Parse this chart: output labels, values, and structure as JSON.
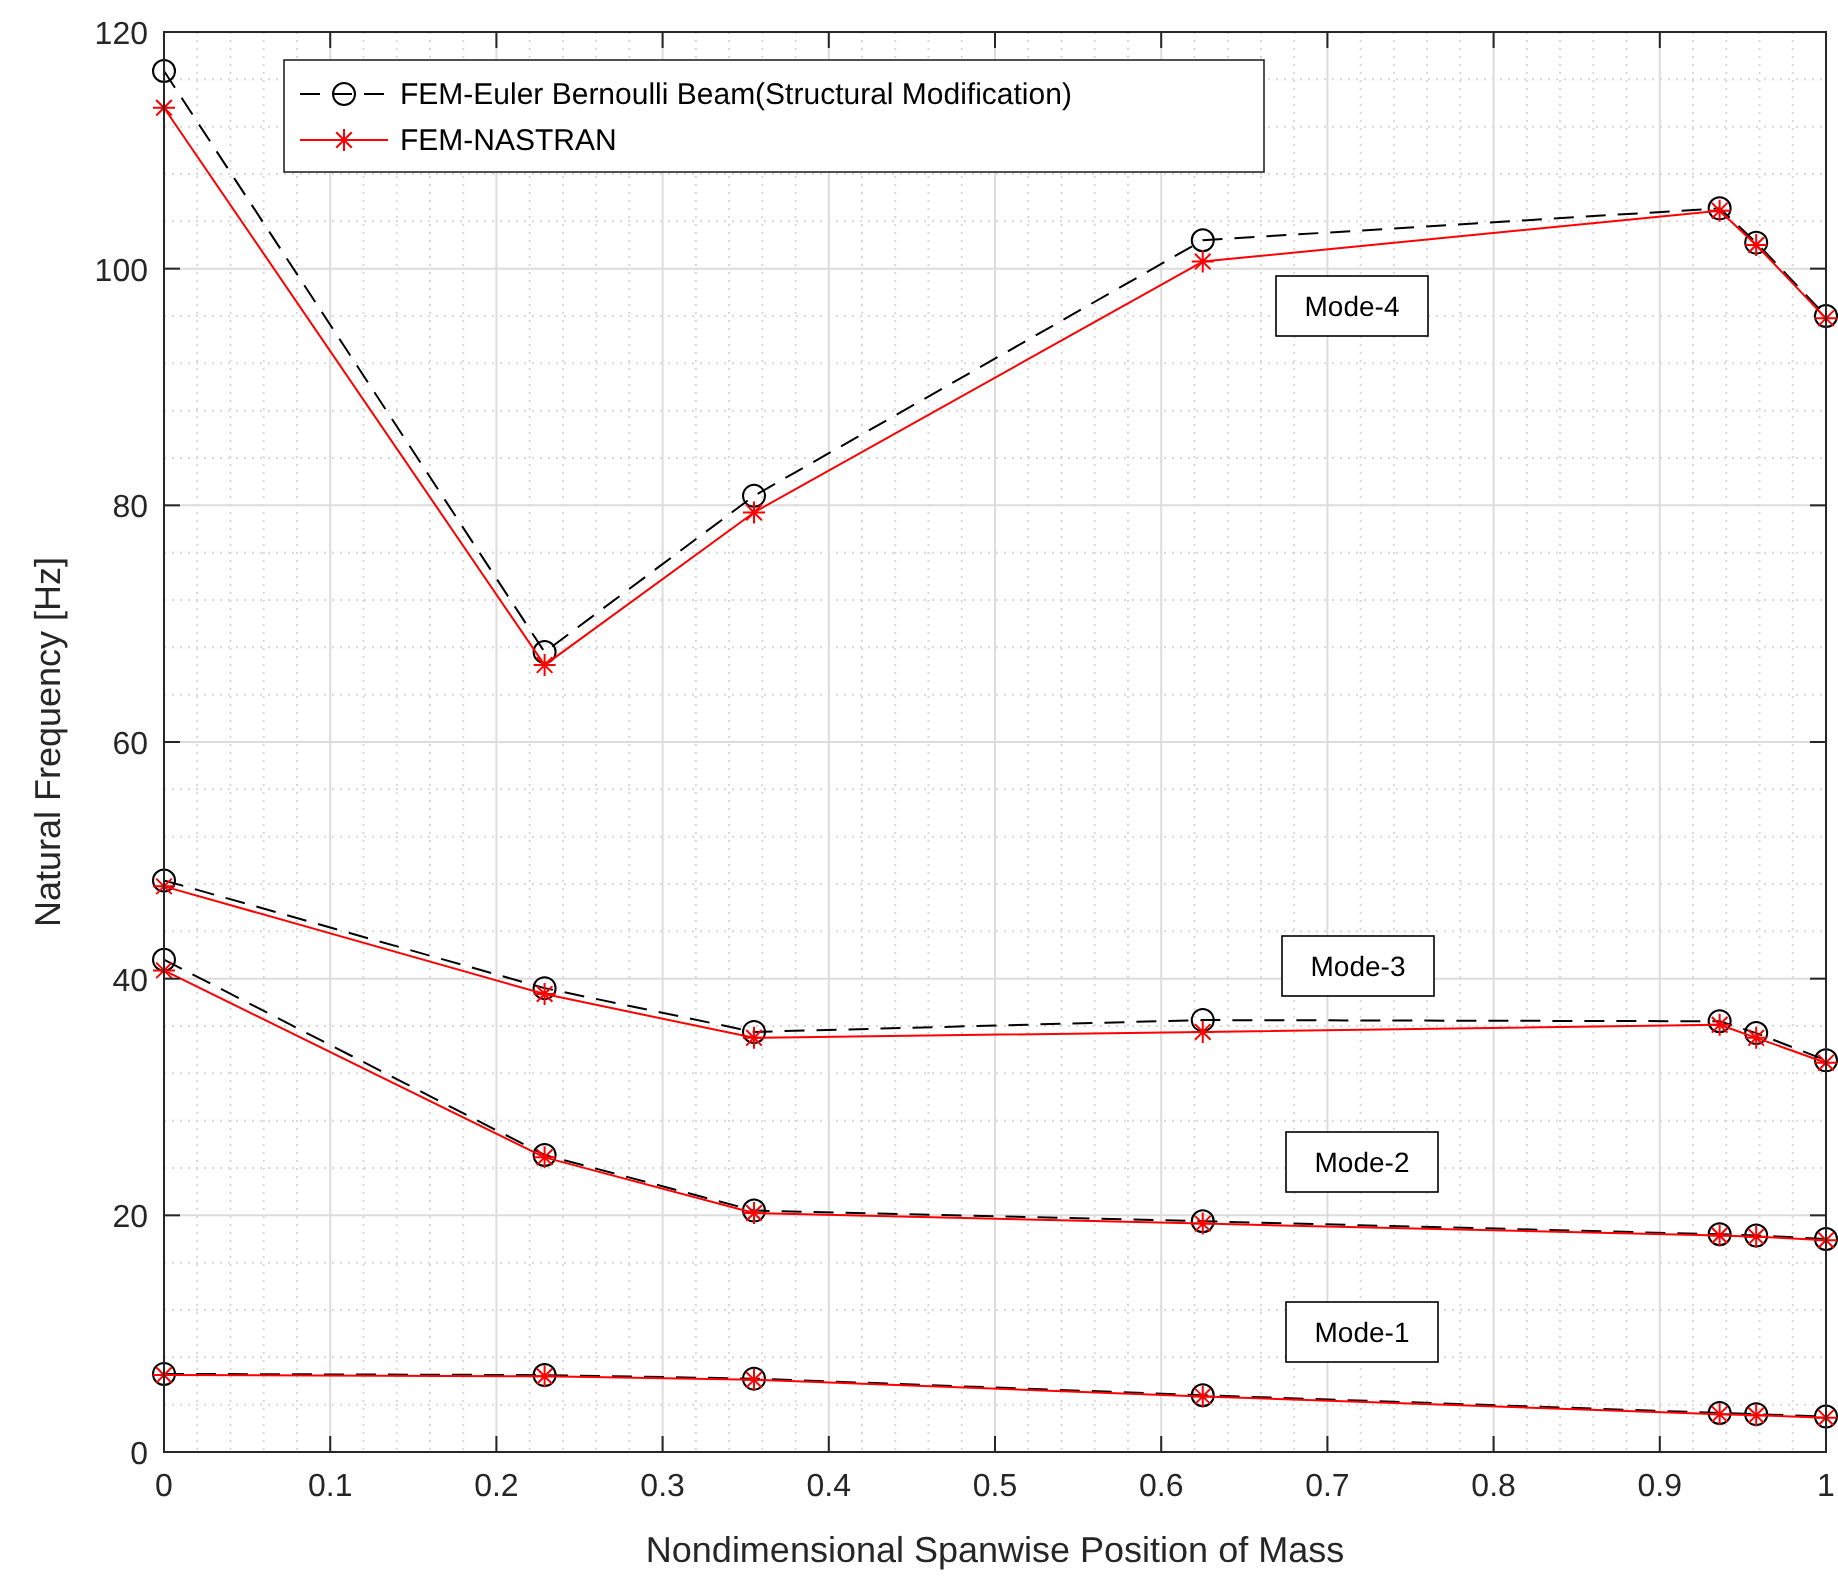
{
  "chart_data": {
    "type": "line",
    "xlabel": "Nondimensional Spanwise Position of Mass",
    "ylabel": "Natural Frequency [Hz]",
    "x": [
      0,
      0.229,
      0.355,
      0.625,
      0.936,
      0.958,
      1
    ],
    "xlim": [
      0,
      1
    ],
    "xticks": [
      0,
      0.1,
      0.2,
      0.3,
      0.4,
      0.5,
      0.6,
      0.7,
      0.8,
      0.9,
      1
    ],
    "ylim": [
      0,
      120
    ],
    "yticks": [
      0,
      20,
      40,
      60,
      80,
      100,
      120
    ],
    "grid": true,
    "legend": "top left",
    "series": [
      {
        "name": "FEM-Euler Bernoulli Beam(Structural Modification)",
        "color": "#000000",
        "marker": "circle",
        "line_style": "dashed",
        "values": [
          116.7,
          67.6,
          80.8,
          102.4,
          105.1,
          102.2,
          96.0
        ]
      },
      {
        "name": "FEM-NASTRAN",
        "color": "#ff0000",
        "marker": "cross",
        "line_style": "solid",
        "values": [
          113.6,
          66.5,
          79.4,
          100.6,
          104.9,
          102.0,
          95.8
        ]
      },
      {
        "color": "#000000",
        "marker": "circle",
        "line_style": "dashed",
        "values": [
          48.3,
          39.2,
          35.5,
          36.5,
          36.4,
          35.4,
          33.1
        ]
      },
      {
        "color": "#ff0000",
        "marker": "cross",
        "line_style": "solid",
        "values": [
          47.8,
          38.7,
          35.0,
          35.5,
          36.1,
          35.0,
          32.9
        ]
      },
      {
        "color": "#000000",
        "marker": "circle",
        "line_style": "dashed",
        "values": [
          41.6,
          25.1,
          20.4,
          19.5,
          18.4,
          18.3,
          18.0
        ]
      },
      {
        "color": "#ff0000",
        "marker": "cross",
        "line_style": "solid",
        "values": [
          40.7,
          24.9,
          20.2,
          19.3,
          18.3,
          18.2,
          17.9
        ]
      },
      {
        "color": "#000000",
        "marker": "circle",
        "line_style": "dashed",
        "values": [
          6.6,
          6.5,
          6.2,
          4.8,
          3.3,
          3.2,
          3.0
        ]
      },
      {
        "color": "#ff0000",
        "marker": "cross",
        "line_style": "solid",
        "values": [
          6.5,
          6.4,
          6.1,
          4.7,
          3.2,
          3.1,
          2.9
        ]
      }
    ],
    "annotations": [
      "Mode-4",
      "Mode-3",
      "Mode-2",
      "Mode-1"
    ]
  }
}
